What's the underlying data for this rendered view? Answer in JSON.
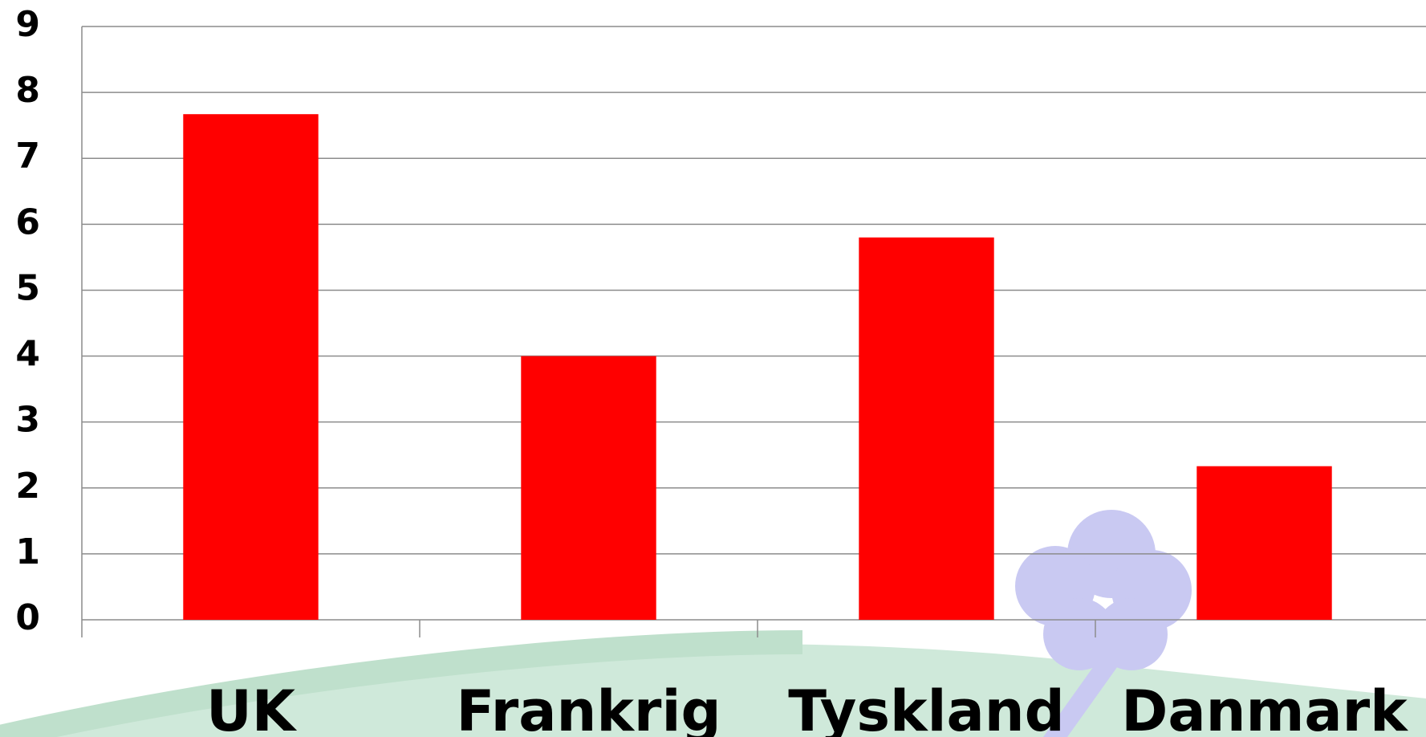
{
  "chart_data": {
    "type": "bar",
    "categories": [
      "UK",
      "Frankrig",
      "Tyskland",
      "Danmark"
    ],
    "values": [
      7.67,
      4.0,
      5.8,
      2.33
    ],
    "color": "#ff0000",
    "ylim": [
      0,
      9
    ],
    "yticks": [
      0,
      1,
      2,
      3,
      4,
      5,
      6,
      7,
      8,
      9
    ],
    "grid": true
  }
}
